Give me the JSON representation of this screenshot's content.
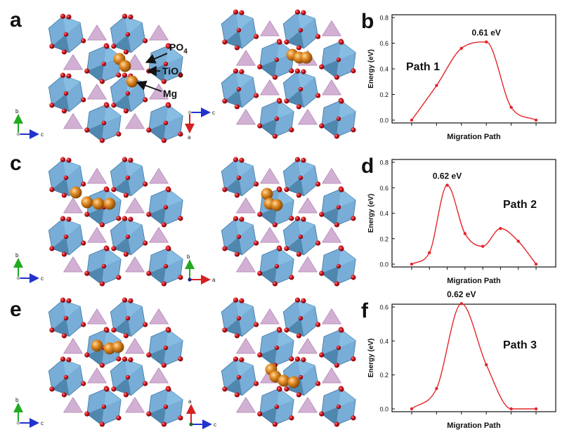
{
  "panel_letters": [
    "a",
    "b",
    "c",
    "d",
    "e",
    "f"
  ],
  "structure_labels": {
    "po4": "PO",
    "po4_sub": "4",
    "tio6": "TiO",
    "tio6_sub": "6",
    "mg": "Mg"
  },
  "axis_letters": {
    "a_left": [
      "b",
      "c"
    ],
    "a_right": [
      "c",
      "a"
    ],
    "c_left": [
      "b",
      "c"
    ],
    "c_right": [
      "b",
      "a"
    ],
    "e_left": [
      "b",
      "c"
    ],
    "e_right": [
      "a",
      "c"
    ]
  },
  "colors": {
    "octahedron": "#5f9fcf",
    "octahedron_dark": "#3f77a3",
    "tetrahedron": "#c79cc9",
    "oxygen": "#c8131b",
    "magnesium": "#e08c25",
    "curve": "#e3262c",
    "axis_b": "#22aa22",
    "axis_c": "#2233cc",
    "axis_a": "#d42020"
  },
  "chart_data": [
    {
      "type": "line",
      "panel": "b",
      "path_label": "Path 1",
      "xlabel": "Migration Path",
      "ylabel": "Energy (eV)",
      "ylim": [
        0,
        0.8
      ],
      "yticks": [
        "0.0",
        "0.2",
        "0.4",
        "0.6",
        "0.8"
      ],
      "x": [
        0,
        1,
        2,
        3,
        4,
        5
      ],
      "values": [
        0.0,
        0.27,
        0.56,
        0.61,
        0.1,
        0.0
      ],
      "peak_label": "0.61 eV"
    },
    {
      "type": "line",
      "panel": "d",
      "path_label": "Path 2",
      "xlabel": "Migration Path",
      "ylabel": "Energy (eV)",
      "ylim": [
        0,
        0.8
      ],
      "yticks": [
        "0.0",
        "0.2",
        "0.4",
        "0.6",
        "0.8"
      ],
      "x": [
        0,
        1,
        2,
        3,
        4,
        5,
        6,
        7
      ],
      "values": [
        0.0,
        0.09,
        0.62,
        0.24,
        0.14,
        0.28,
        0.18,
        0.0
      ],
      "peak_label": "0.62 eV"
    },
    {
      "type": "line",
      "panel": "f",
      "path_label": "Path 3",
      "xlabel": "Migration Path",
      "ylabel": "Energy (eV)",
      "ylim": [
        0,
        0.6
      ],
      "yticks": [
        "0.0",
        "0.2",
        "0.4",
        "0.6"
      ],
      "x": [
        0,
        1,
        2,
        3,
        4,
        5
      ],
      "values": [
        0.0,
        0.12,
        0.62,
        0.26,
        0.0,
        0.0
      ],
      "peak_label": "0.62 eV"
    }
  ]
}
